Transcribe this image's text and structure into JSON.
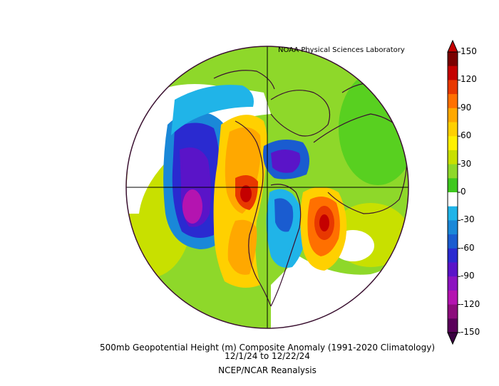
{
  "credit": "NOAA Physical Sciences Laboratory",
  "caption": {
    "line1": "500mb Geopotential Height (m) Composite Anomaly (1991-2020 Climatology)",
    "line2": "12/1/24   to 12/22/24",
    "line3": "NCEP/NCAR Reanalysis"
  },
  "colorbar": {
    "labels": [
      "150",
      "120",
      "90",
      "60",
      "30",
      "0",
      "-30",
      "-60",
      "-90",
      "-120",
      "-150"
    ],
    "colors": [
      "#7a0000",
      "#c40000",
      "#e83800",
      "#ff7000",
      "#ffa800",
      "#ffd000",
      "#fff000",
      "#c8e000",
      "#8ed82a",
      "#3ec81e",
      "#ffffff",
      "#20b4e8",
      "#1a88d8",
      "#1a5cd0",
      "#2a2ad0",
      "#5a14c8",
      "#8c14c0",
      "#b414b0",
      "#8c0c7c",
      "#5a005a"
    ]
  },
  "map": {
    "projection": "north polar stereographic",
    "variable": "500mb geopotential height anomaly",
    "units": "m",
    "features": [
      {
        "name": "negative anomaly",
        "region": "North Pacific / Gulf of Alaska",
        "value": -120
      },
      {
        "name": "positive anomaly",
        "region": "Alaska / western Canada",
        "value": 120
      },
      {
        "name": "positive anomaly",
        "region": "western North America",
        "value": 90
      },
      {
        "name": "negative anomaly",
        "region": "Canadian Arctic",
        "value": -90
      },
      {
        "name": "negative anomaly",
        "region": "eastern North America / Atlantic",
        "value": -60
      },
      {
        "name": "positive anomaly",
        "region": "North Atlantic",
        "value": 150
      }
    ]
  }
}
